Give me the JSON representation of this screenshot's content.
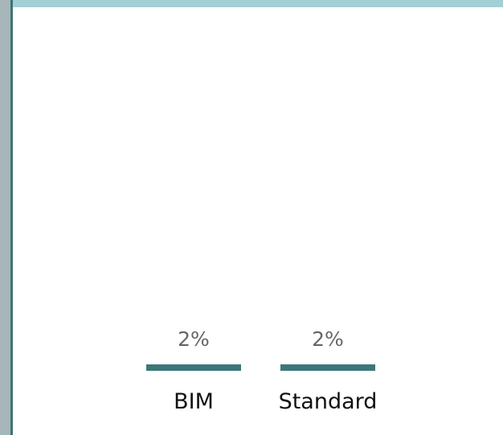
{
  "chart_data": {
    "type": "bar",
    "categories": [
      "BIM",
      "Standard"
    ],
    "values": [
      2,
      2
    ],
    "data_labels": [
      "2%",
      "2%"
    ],
    "ylim": [
      0,
      100
    ],
    "bar_color": "#3d7779",
    "grid": false,
    "legend": "none"
  }
}
